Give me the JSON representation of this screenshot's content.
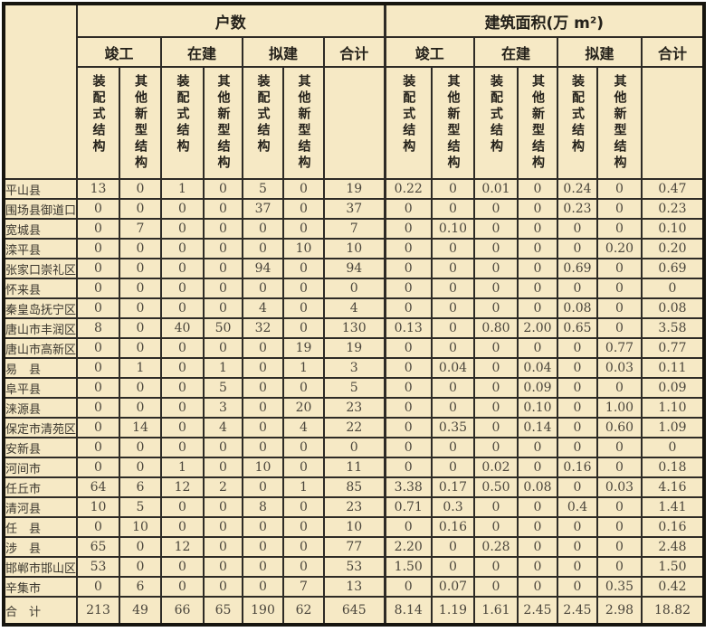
{
  "colors": {
    "cell_background": "#f6e9c5",
    "grid_line": "#2e2b26",
    "outer_border": "#17150f",
    "header_text": "#24211a",
    "data_text": "#4b463c",
    "page_background": "#ffffff"
  },
  "table": {
    "corner_label": "",
    "blocks": [
      {
        "title": "户数"
      },
      {
        "title": "建筑面积(万 m²)"
      }
    ],
    "group_headers": [
      "竣工",
      "在建",
      "拟建",
      "合计"
    ],
    "sub_headers": [
      "装配式结构",
      "其他新型结构"
    ],
    "rows": [
      {
        "name": "平山县",
        "values": [
          "13",
          "0",
          "1",
          "0",
          "5",
          "0",
          "19",
          "0.22",
          "0",
          "0.01",
          "0",
          "0.24",
          "0",
          "0.47"
        ]
      },
      {
        "name": "围场县御道口",
        "values": [
          "0",
          "0",
          "0",
          "0",
          "37",
          "0",
          "37",
          "0",
          "0",
          "0",
          "0",
          "0.23",
          "0",
          "0.23"
        ]
      },
      {
        "name": "宽城县",
        "values": [
          "0",
          "7",
          "0",
          "0",
          "0",
          "0",
          "7",
          "0",
          "0.10",
          "0",
          "0",
          "0",
          "0",
          "0.10"
        ]
      },
      {
        "name": "滦平县",
        "values": [
          "0",
          "0",
          "0",
          "0",
          "0",
          "10",
          "10",
          "0",
          "0",
          "0",
          "0",
          "0",
          "0.20",
          "0.20"
        ]
      },
      {
        "name": "张家口崇礼区",
        "values": [
          "0",
          "0",
          "0",
          "0",
          "94",
          "0",
          "94",
          "0",
          "0",
          "0",
          "0",
          "0.69",
          "0",
          "0.69"
        ]
      },
      {
        "name": "怀来县",
        "values": [
          "0",
          "0",
          "0",
          "0",
          "0",
          "0",
          "0",
          "0",
          "0",
          "0",
          "0",
          "0",
          "0",
          "0"
        ]
      },
      {
        "name": "秦皇岛抚宁区",
        "values": [
          "0",
          "0",
          "0",
          "0",
          "4",
          "0",
          "4",
          "0",
          "0",
          "0",
          "0",
          "0.08",
          "0",
          "0.08"
        ]
      },
      {
        "name": "唐山市丰润区",
        "values": [
          "8",
          "0",
          "40",
          "50",
          "32",
          "0",
          "130",
          "0.13",
          "0",
          "0.80",
          "2.00",
          "0.65",
          "0",
          "3.58"
        ]
      },
      {
        "name": "唐山市高新区",
        "values": [
          "0",
          "0",
          "0",
          "0",
          "0",
          "19",
          "19",
          "0",
          "0",
          "0",
          "0",
          "0",
          "0.77",
          "0.77"
        ]
      },
      {
        "name": "易　县",
        "values": [
          "0",
          "1",
          "0",
          "1",
          "0",
          "1",
          "3",
          "0",
          "0.04",
          "0",
          "0.04",
          "0",
          "0.03",
          "0.11"
        ]
      },
      {
        "name": "阜平县",
        "values": [
          "0",
          "0",
          "0",
          "5",
          "0",
          "0",
          "5",
          "0",
          "0",
          "0",
          "0.09",
          "0",
          "0",
          "0.09"
        ]
      },
      {
        "name": "涞源县",
        "values": [
          "0",
          "0",
          "0",
          "3",
          "0",
          "20",
          "23",
          "0",
          "0",
          "0",
          "0.10",
          "0",
          "1.00",
          "1.10"
        ]
      },
      {
        "name": "保定市清苑区",
        "values": [
          "0",
          "14",
          "0",
          "4",
          "0",
          "4",
          "22",
          "0",
          "0.35",
          "0",
          "0.14",
          "0",
          "0.60",
          "1.09"
        ]
      },
      {
        "name": "安新县",
        "values": [
          "0",
          "0",
          "0",
          "0",
          "0",
          "0",
          "0",
          "0",
          "0",
          "0",
          "0",
          "0",
          "0",
          "0"
        ]
      },
      {
        "name": "河间市",
        "values": [
          "0",
          "0",
          "1",
          "0",
          "10",
          "0",
          "11",
          "0",
          "0",
          "0.02",
          "0",
          "0.16",
          "0",
          "0.18"
        ]
      },
      {
        "name": "任丘市",
        "values": [
          "64",
          "6",
          "12",
          "2",
          "0",
          "1",
          "85",
          "3.38",
          "0.17",
          "0.50",
          "0.08",
          "0",
          "0.03",
          "4.16"
        ]
      },
      {
        "name": "清河县",
        "values": [
          "10",
          "5",
          "0",
          "0",
          "8",
          "0",
          "23",
          "0.71",
          "0.3",
          "0",
          "0",
          "0.4",
          "0",
          "1.41"
        ]
      },
      {
        "name": "任　县",
        "values": [
          "0",
          "10",
          "0",
          "0",
          "0",
          "0",
          "10",
          "0",
          "0.16",
          "0",
          "0",
          "0",
          "0",
          "0.16"
        ]
      },
      {
        "name": "涉　县",
        "values": [
          "65",
          "0",
          "12",
          "0",
          "0",
          "0",
          "77",
          "2.20",
          "0",
          "0.28",
          "0",
          "0",
          "0",
          "2.48"
        ]
      },
      {
        "name": "邯郸市邯山区",
        "values": [
          "53",
          "0",
          "0",
          "0",
          "0",
          "0",
          "53",
          "1.50",
          "0",
          "0",
          "0",
          "0",
          "0",
          "1.50"
        ]
      },
      {
        "name": "辛集市",
        "values": [
          "0",
          "6",
          "0",
          "0",
          "0",
          "7",
          "13",
          "0",
          "0.07",
          "0",
          "0",
          "0",
          "0.35",
          "0.42"
        ]
      },
      {
        "name": "合　计",
        "values": [
          "213",
          "49",
          "66",
          "65",
          "190",
          "62",
          "645",
          "8.14",
          "1.19",
          "1.61",
          "2.45",
          "2.45",
          "2.98",
          "18.82"
        ]
      }
    ]
  }
}
